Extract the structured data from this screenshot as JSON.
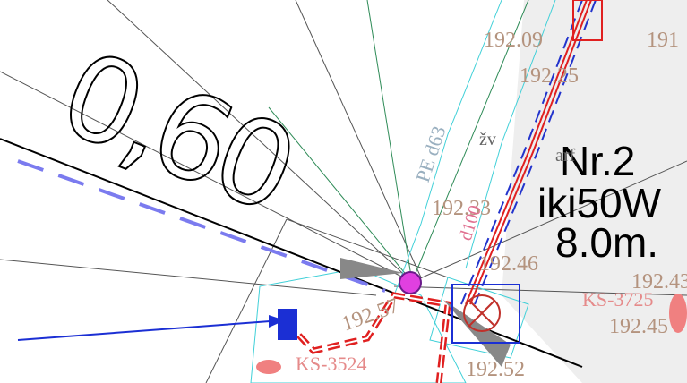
{
  "drawing": {
    "scale_note": "0,60",
    "label": {
      "line1": "Nr.2",
      "line2": "iki50W",
      "line3": "8.0m."
    },
    "levels": [
      "192.09",
      "191",
      "192.25",
      "192.33",
      "192.46",
      "192.43",
      "192.45",
      "192.57",
      "192.52"
    ],
    "wells": [
      "KS-3725",
      "KS-3524"
    ],
    "pipes": [
      "PE d63",
      "d100"
    ],
    "notes": [
      "žv",
      "arf"
    ]
  }
}
